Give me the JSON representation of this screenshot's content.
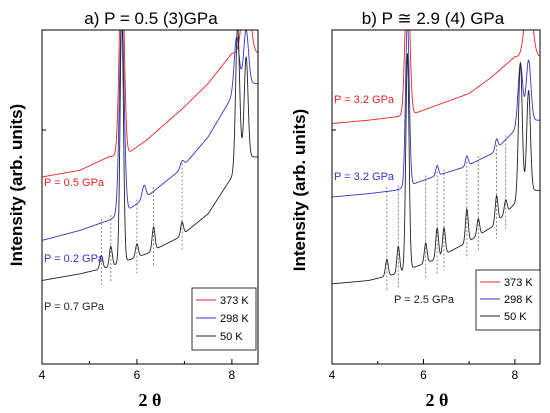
{
  "colors": {
    "red": "#ee2222",
    "blue": "#3333cc",
    "black": "#222222",
    "marker": "#666666"
  },
  "chart_data": [
    {
      "type": "line",
      "title": "a) P = 0.5 (3)GPa",
      "ylabel": "Intensity (arb. units)",
      "xlabel": "2 θ",
      "xlim": [
        4.0,
        8.55
      ],
      "xticks": [
        4,
        6,
        8
      ],
      "ylim": [
        0,
        100
      ],
      "legend": [
        "373 K",
        "298 K",
        "50 K"
      ],
      "legend_position": "bottom-right",
      "annotations": [
        {
          "text": "P = 0.5 GPa",
          "series": "373 K",
          "color": "red"
        },
        {
          "text": "P = 0.2 GPa",
          "series": "298 K",
          "color": "blue"
        },
        {
          "text": "P = 0.7 GPa",
          "series": "50 K",
          "color": "black"
        }
      ],
      "peak_markers": [
        5.25,
        5.45,
        6.0,
        6.35,
        6.95
      ],
      "series": [
        {
          "name": "373 K",
          "color": "red",
          "base": [
            [
              4.0,
              56
            ],
            [
              4.8,
              58
            ],
            [
              5.4,
              62
            ],
            [
              5.8,
              63
            ],
            [
              6.2,
              67
            ],
            [
              7.0,
              77
            ],
            [
              7.5,
              84
            ],
            [
              8.0,
              93
            ]
          ],
          "peaks": [
            [
              5.68,
              60,
              0.05
            ],
            [
              8.3,
              22,
              0.08
            ]
          ]
        },
        {
          "name": "298 K",
          "color": "blue",
          "base": [
            [
              4.0,
              37
            ],
            [
              4.8,
              40
            ],
            [
              5.4,
              43
            ],
            [
              5.8,
              46
            ],
            [
              6.2,
              50
            ],
            [
              6.9,
              58
            ],
            [
              7.5,
              68
            ],
            [
              8.0,
              80
            ],
            [
              8.2,
              84
            ]
          ],
          "peaks": [
            [
              5.68,
              60,
              0.05
            ],
            [
              6.15,
              4,
              0.04
            ],
            [
              6.95,
              2,
              0.04
            ],
            [
              8.1,
              16,
              0.05
            ],
            [
              8.3,
              16,
              0.05
            ]
          ]
        },
        {
          "name": "50 K",
          "color": "black",
          "base": [
            [
              4.0,
              25
            ],
            [
              4.8,
              27
            ],
            [
              5.4,
              29
            ],
            [
              5.8,
              31
            ],
            [
              6.2,
              33
            ],
            [
              6.9,
              38
            ],
            [
              7.5,
              45
            ],
            [
              8.0,
              56
            ],
            [
              8.2,
              62
            ]
          ],
          "peaks": [
            [
              5.25,
              4,
              0.03
            ],
            [
              5.45,
              6,
              0.03
            ],
            [
              5.68,
              75,
              0.035
            ],
            [
              6.0,
              4,
              0.03
            ],
            [
              6.35,
              7,
              0.03
            ],
            [
              6.95,
              4,
              0.03
            ],
            [
              8.12,
              42,
              0.04
            ],
            [
              8.3,
              30,
              0.04
            ]
          ]
        }
      ]
    },
    {
      "type": "line",
      "title": "b) P ≅ 2.9 (4) GPa",
      "ylabel": "Intensity (arb. units)",
      "xlabel": "2 θ",
      "xlim": [
        4.0,
        8.55
      ],
      "xticks": [
        4,
        6,
        8
      ],
      "ylim": [
        0,
        100
      ],
      "legend": [
        "373 K",
        "298 K",
        "50 K"
      ],
      "legend_position": "bottom-right",
      "annotations": [
        {
          "text": "P = 3.2 GPa",
          "series": "373 K",
          "color": "red"
        },
        {
          "text": "P = 3.2 GPa",
          "series": "298 K",
          "color": "blue"
        },
        {
          "text": "P = 2.5 GPa",
          "series": "50 K",
          "color": "black"
        }
      ],
      "peak_markers": [
        5.2,
        5.45,
        6.05,
        6.3,
        6.45,
        6.95,
        7.2,
        7.6,
        7.8
      ],
      "series": [
        {
          "name": "373 K",
          "color": "red",
          "base": [
            [
              4.0,
              72
            ],
            [
              4.8,
              73
            ],
            [
              5.4,
              74
            ],
            [
              5.8,
              75
            ],
            [
              6.2,
              77
            ],
            [
              7.0,
              81
            ],
            [
              7.5,
              86
            ],
            [
              8.0,
              92
            ]
          ],
          "peaks": [
            [
              5.65,
              45,
              0.05
            ],
            [
              8.3,
              20,
              0.08
            ]
          ]
        },
        {
          "name": "298 K",
          "color": "blue",
          "base": [
            [
              4.0,
              50
            ],
            [
              4.8,
              51
            ],
            [
              5.4,
              52
            ],
            [
              5.8,
              54
            ],
            [
              6.2,
              56
            ],
            [
              6.9,
              59
            ],
            [
              7.5,
              63
            ],
            [
              8.0,
              70
            ],
            [
              8.2,
              73
            ]
          ],
          "peaks": [
            [
              5.65,
              50,
              0.04
            ],
            [
              6.3,
              3,
              0.03
            ],
            [
              6.95,
              3,
              0.03
            ],
            [
              7.6,
              3,
              0.03
            ],
            [
              8.12,
              18,
              0.05
            ],
            [
              8.3,
              18,
              0.05
            ]
          ]
        },
        {
          "name": "50 K",
          "color": "black",
          "base": [
            [
              4.0,
              24
            ],
            [
              4.8,
              25
            ],
            [
              5.4,
              27
            ],
            [
              5.8,
              29
            ],
            [
              6.2,
              31
            ],
            [
              6.9,
              36
            ],
            [
              7.5,
              41
            ],
            [
              8.0,
              48
            ],
            [
              8.2,
              52
            ]
          ],
          "peaks": [
            [
              5.2,
              5,
              0.03
            ],
            [
              5.45,
              8,
              0.03
            ],
            [
              5.65,
              65,
              0.035
            ],
            [
              6.05,
              6,
              0.03
            ],
            [
              6.3,
              9,
              0.03
            ],
            [
              6.45,
              8,
              0.03
            ],
            [
              6.95,
              10,
              0.03
            ],
            [
              7.2,
              5,
              0.03
            ],
            [
              7.6,
              8,
              0.03
            ],
            [
              7.8,
              4,
              0.03
            ],
            [
              8.12,
              40,
              0.04
            ],
            [
              8.3,
              30,
              0.04
            ]
          ]
        }
      ]
    }
  ]
}
